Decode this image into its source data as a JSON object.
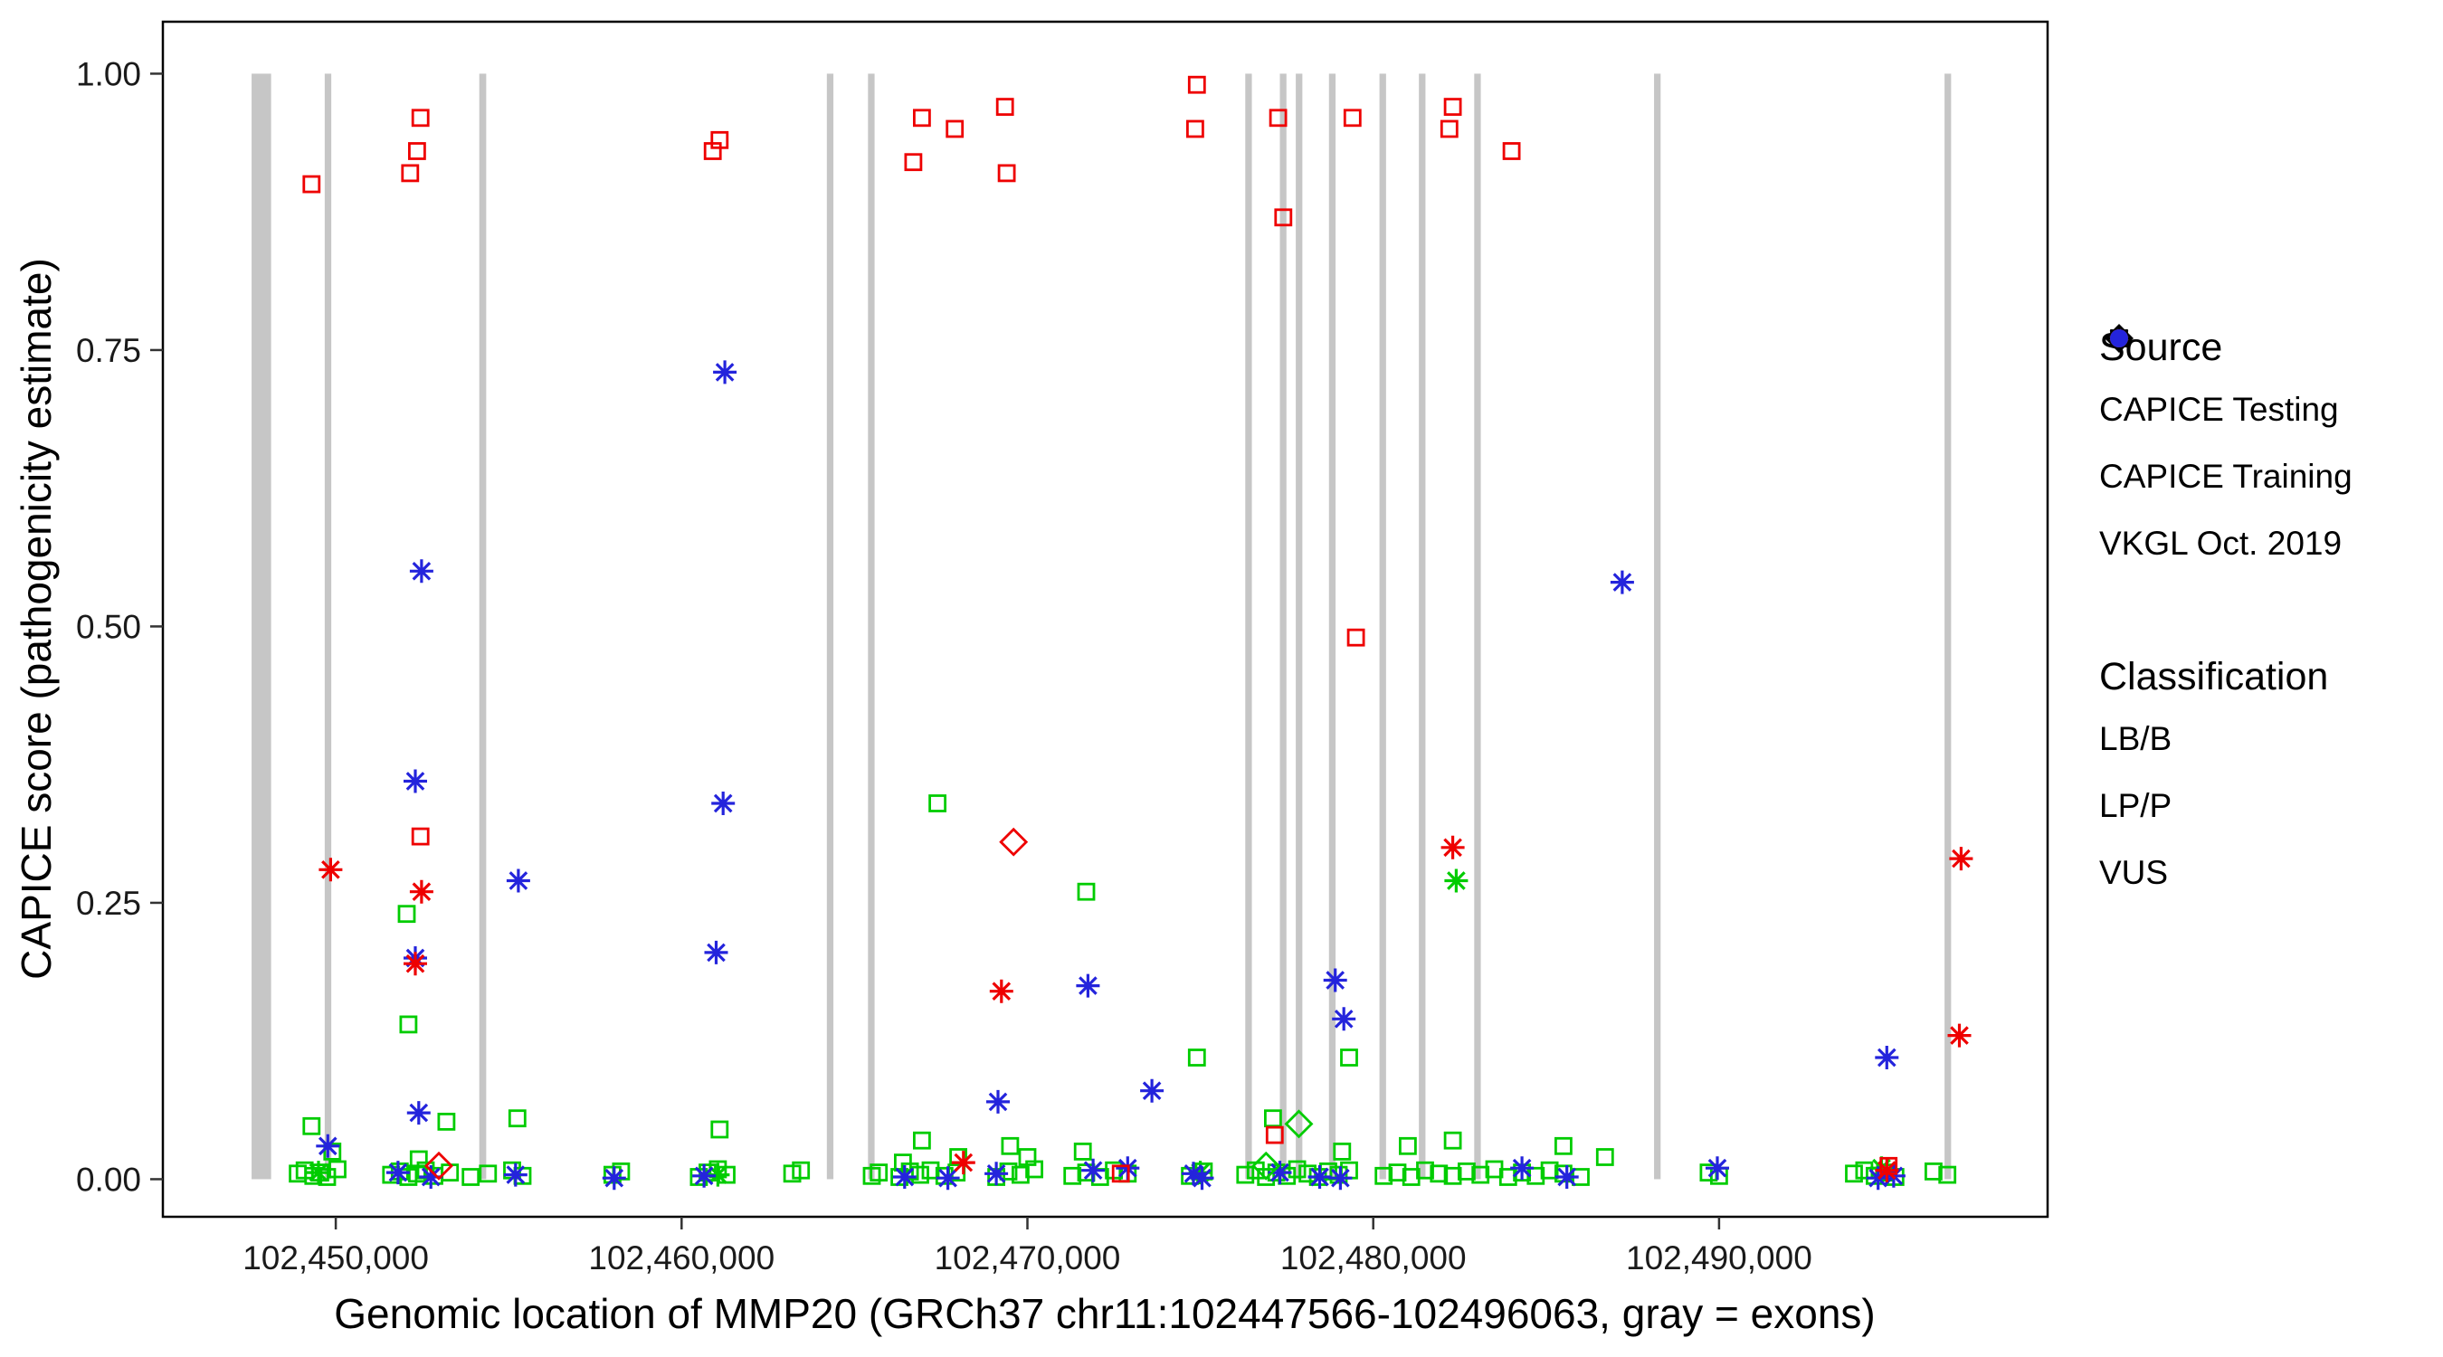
{
  "figure": {
    "background": "#FFFFFF",
    "panel_border_color": "#000000",
    "exon_color": "#C6C6C6"
  },
  "x_axis": {
    "title": "Genomic location of MMP20 (GRCh37 chr11:102447566-102496063, gray = exons)",
    "domain": [
      102445000,
      102499500
    ],
    "ticks": [
      102450000,
      102460000,
      102470000,
      102480000,
      102490000
    ],
    "tick_labels": [
      "102,450,000",
      "102,460,000",
      "102,470,000",
      "102,480,000",
      "102,490,000"
    ]
  },
  "y_axis": {
    "title": "CAPICE score (pathogenicity estimate)",
    "domain": [
      -0.034,
      1.047
    ],
    "ticks": [
      0,
      0.25,
      0.5,
      0.75,
      1.0
    ],
    "tick_labels": [
      "0.00",
      "0.25",
      "0.50",
      "0.75",
      "1.00"
    ]
  },
  "legend": {
    "source": {
      "title": "Source",
      "items": [
        {
          "label": "CAPICE Testing",
          "marker": "diamond"
        },
        {
          "label": "CAPICE Training",
          "marker": "square"
        },
        {
          "label": "VKGL Oct. 2019",
          "marker": "asterisk"
        }
      ]
    },
    "classification": {
      "title": "Classification",
      "items": [
        {
          "label": "LB/B",
          "color": "#00CC00"
        },
        {
          "label": "LP/P",
          "color": "#EE0000"
        },
        {
          "label": "VUS",
          "color": "#2424DC"
        }
      ]
    }
  },
  "chart_data": {
    "type": "scatter",
    "title": "",
    "xlabel": "Genomic location of MMP20 (GRCh37 chr11:102447566-102496063, gray = exons)",
    "ylabel": "CAPICE score (pathogenicity estimate)",
    "xlim": [
      102445000,
      102499500
    ],
    "ylim": [
      -0.034,
      1.047
    ],
    "grid": false,
    "legend_position": "right",
    "exons": [
      [
        102447566,
        102448130
      ],
      [
        102449680,
        102449870
      ],
      [
        102454150,
        102454350
      ],
      [
        102464200,
        102464390
      ],
      [
        102465390,
        102465580
      ],
      [
        102476300,
        102476490
      ],
      [
        102477300,
        102477490
      ],
      [
        102477760,
        102477950
      ],
      [
        102478720,
        102478910
      ],
      [
        102480180,
        102480370
      ],
      [
        102481320,
        102481510
      ],
      [
        102482920,
        102483110
      ],
      [
        102488120,
        102488310
      ],
      [
        102496520,
        102496710
      ]
    ],
    "groups": [
      {
        "source": "CAPICE Training",
        "classification": "LB/B",
        "marker": "square",
        "color": "#00CC00",
        "points": [
          [
            102467400,
            0.34
          ],
          [
            102471700,
            0.26
          ],
          [
            102452050,
            0.24
          ],
          [
            102452100,
            0.14
          ],
          [
            102474900,
            0.11
          ],
          [
            102479300,
            0.11
          ],
          [
            102449300,
            0.048
          ],
          [
            102453200,
            0.052
          ],
          [
            102455250,
            0.055
          ],
          [
            102477100,
            0.055
          ],
          [
            102461100,
            0.045
          ],
          [
            102466950,
            0.035
          ],
          [
            102469500,
            0.03
          ],
          [
            102470000,
            0.02
          ],
          [
            102468000,
            0.02
          ],
          [
            102471600,
            0.025
          ],
          [
            102482300,
            0.035
          ],
          [
            102485500,
            0.03
          ],
          [
            102486700,
            0.02
          ],
          [
            102449900,
            0.025
          ],
          [
            102452400,
            0.018
          ],
          [
            102479100,
            0.025
          ],
          [
            102481000,
            0.03
          ],
          [
            102466400,
            0.015
          ],
          [
            102448900,
            0.005
          ],
          [
            102449100,
            0.008
          ],
          [
            102449350,
            0.003
          ],
          [
            102449550,
            0.006
          ],
          [
            102449750,
            0.002
          ],
          [
            102450050,
            0.009
          ],
          [
            102451600,
            0.004
          ],
          [
            102451850,
            0.007
          ],
          [
            102452100,
            0.002
          ],
          [
            102452350,
            0.005
          ],
          [
            102452600,
            0.008
          ],
          [
            102452850,
            0.003
          ],
          [
            102453300,
            0.006
          ],
          [
            102453900,
            0.002
          ],
          [
            102454400,
            0.005
          ],
          [
            102455100,
            0.008
          ],
          [
            102455400,
            0.003
          ],
          [
            102458000,
            0.004
          ],
          [
            102458250,
            0.007
          ],
          [
            102460500,
            0.002
          ],
          [
            102460750,
            0.006
          ],
          [
            102461050,
            0.009
          ],
          [
            102461300,
            0.004
          ],
          [
            102463200,
            0.005
          ],
          [
            102463450,
            0.008
          ],
          [
            102465500,
            0.003
          ],
          [
            102465700,
            0.006
          ],
          [
            102466300,
            0.002
          ],
          [
            102466600,
            0.007
          ],
          [
            102466900,
            0.004
          ],
          [
            102467200,
            0.008
          ],
          [
            102467600,
            0.003
          ],
          [
            102467950,
            0.006
          ],
          [
            102469100,
            0.002
          ],
          [
            102469450,
            0.007
          ],
          [
            102469800,
            0.004
          ],
          [
            102470200,
            0.009
          ],
          [
            102471300,
            0.003
          ],
          [
            102471700,
            0.006
          ],
          [
            102472100,
            0.002
          ],
          [
            102472500,
            0.008
          ],
          [
            102472900,
            0.005
          ],
          [
            102474700,
            0.003
          ],
          [
            102475100,
            0.007
          ],
          [
            102476300,
            0.004
          ],
          [
            102476600,
            0.008
          ],
          [
            102476900,
            0.002
          ],
          [
            102477200,
            0.006
          ],
          [
            102477500,
            0.003
          ],
          [
            102477800,
            0.009
          ],
          [
            102478100,
            0.005
          ],
          [
            102478400,
            0.002
          ],
          [
            102478700,
            0.007
          ],
          [
            102479000,
            0.004
          ],
          [
            102479300,
            0.008
          ],
          [
            102480300,
            0.003
          ],
          [
            102480700,
            0.006
          ],
          [
            102481100,
            0.002
          ],
          [
            102481500,
            0.008
          ],
          [
            102481900,
            0.005
          ],
          [
            102482300,
            0.003
          ],
          [
            102482700,
            0.007
          ],
          [
            102483100,
            0.004
          ],
          [
            102483500,
            0.009
          ],
          [
            102483900,
            0.002
          ],
          [
            102484300,
            0.006
          ],
          [
            102484700,
            0.003
          ],
          [
            102485100,
            0.008
          ],
          [
            102485500,
            0.005
          ],
          [
            102486000,
            0.002
          ],
          [
            102489700,
            0.006
          ],
          [
            102490000,
            0.003
          ],
          [
            102493900,
            0.005
          ],
          [
            102494200,
            0.008
          ],
          [
            102494500,
            0.003
          ],
          [
            102494800,
            0.006
          ],
          [
            102495100,
            0.002
          ],
          [
            102496200,
            0.007
          ],
          [
            102496600,
            0.004
          ]
        ]
      },
      {
        "source": "VKGL Oct. 2019",
        "classification": "LB/B",
        "marker": "asterisk",
        "color": "#00CC00",
        "points": [
          [
            102482400,
            0.27
          ],
          [
            102449500,
            0.006
          ],
          [
            102461050,
            0.004
          ],
          [
            102475000,
            0.006
          ],
          [
            102494700,
            0.01
          ]
        ]
      },
      {
        "source": "VKGL Oct. 2019",
        "classification": "VUS",
        "marker": "asterisk",
        "color": "#2424DC",
        "points": [
          [
            102461250,
            0.73
          ],
          [
            102452480,
            0.55
          ],
          [
            102487200,
            0.54
          ],
          [
            102452300,
            0.36
          ],
          [
            102461200,
            0.34
          ],
          [
            102455280,
            0.27
          ],
          [
            102452300,
            0.2
          ],
          [
            102461000,
            0.205
          ],
          [
            102471750,
            0.175
          ],
          [
            102478900,
            0.18
          ],
          [
            102479150,
            0.145
          ],
          [
            102469150,
            0.07
          ],
          [
            102473600,
            0.08
          ],
          [
            102494850,
            0.11
          ],
          [
            102452400,
            0.06
          ],
          [
            102449770,
            0.03
          ],
          [
            102451800,
            0.006
          ],
          [
            102452750,
            0.002
          ],
          [
            102455200,
            0.004
          ],
          [
            102458050,
            0.001
          ],
          [
            102460650,
            0.003
          ],
          [
            102466450,
            0.002
          ],
          [
            102467700,
            0.001
          ],
          [
            102469100,
            0.005
          ],
          [
            102471900,
            0.008
          ],
          [
            102472900,
            0.01
          ],
          [
            102474800,
            0.005
          ],
          [
            102475050,
            0.001
          ],
          [
            102477300,
            0.006
          ],
          [
            102478450,
            0.002
          ],
          [
            102479050,
            0.001
          ],
          [
            102484300,
            0.01
          ],
          [
            102485600,
            0.002
          ],
          [
            102489950,
            0.01
          ],
          [
            102495050,
            0.003
          ],
          [
            102494600,
            0.001
          ]
        ]
      },
      {
        "source": "CAPICE Training",
        "classification": "LP/P",
        "marker": "square",
        "color": "#EE0000",
        "points": [
          [
            102449300,
            0.9
          ],
          [
            102452450,
            0.96
          ],
          [
            102452350,
            0.93
          ],
          [
            102452150,
            0.91
          ],
          [
            102460900,
            0.93
          ],
          [
            102461100,
            0.94
          ],
          [
            102466700,
            0.92
          ],
          [
            102466950,
            0.96
          ],
          [
            102467900,
            0.95
          ],
          [
            102469350,
            0.97
          ],
          [
            102469400,
            0.91
          ],
          [
            102474900,
            0.99
          ],
          [
            102474850,
            0.95
          ],
          [
            102477250,
            0.96
          ],
          [
            102477400,
            0.87
          ],
          [
            102479400,
            0.96
          ],
          [
            102479500,
            0.49
          ],
          [
            102482300,
            0.97
          ],
          [
            102482200,
            0.95
          ],
          [
            102484000,
            0.93
          ],
          [
            102452450,
            0.31
          ],
          [
            102477150,
            0.04
          ],
          [
            102472700,
            0.005
          ],
          [
            102494900,
            0.012
          ]
        ]
      },
      {
        "source": "VKGL Oct. 2019",
        "classification": "LP/P",
        "marker": "asterisk",
        "color": "#EE0000",
        "points": [
          [
            102449850,
            0.28
          ],
          [
            102452480,
            0.26
          ],
          [
            102452300,
            0.195
          ],
          [
            102469250,
            0.17
          ],
          [
            102482300,
            0.3
          ],
          [
            102497000,
            0.29
          ],
          [
            102496950,
            0.13
          ],
          [
            102468150,
            0.015
          ],
          [
            102494850,
            0.008
          ]
        ]
      },
      {
        "source": "CAPICE Testing",
        "classification": "LB/B",
        "marker": "diamond",
        "color": "#00CC00",
        "points": [
          [
            102477850,
            0.05
          ],
          [
            102476900,
            0.012
          ]
        ]
      },
      {
        "source": "CAPICE Testing",
        "classification": "LP/P",
        "marker": "diamond",
        "color": "#EE0000",
        "points": [
          [
            102469600,
            0.305
          ],
          [
            102452980,
            0.012
          ]
        ]
      }
    ]
  }
}
